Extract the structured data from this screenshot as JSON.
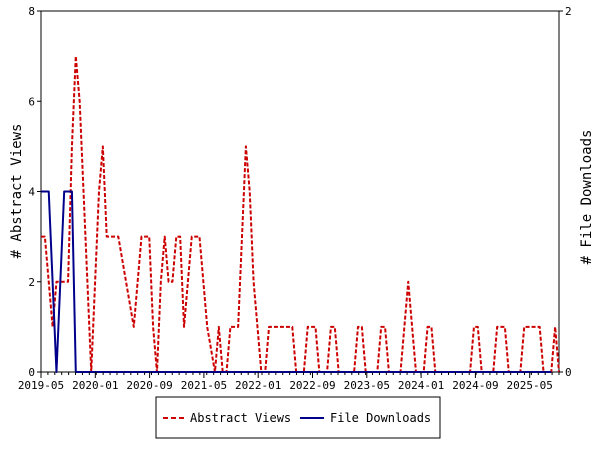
{
  "chart_data": {
    "type": "line",
    "title": "",
    "ylabel": "# Abstract Views",
    "y2label": "# File Downloads",
    "ylim": [
      0,
      8
    ],
    "y2lim": [
      0,
      2
    ],
    "y_ticks": [
      0,
      2,
      4,
      6,
      8
    ],
    "y2_ticks": [
      0,
      2
    ],
    "x_tick_labels": [
      "2019-05",
      "2020-01",
      "2020-09",
      "2021-05",
      "2022-01",
      "2022-09",
      "2023-05",
      "2024-01",
      "2024-09",
      "2025-05"
    ],
    "grid": false,
    "legend_position": "bottom",
    "series": [
      {
        "name": "Abstract Views",
        "axis": "left",
        "color": "#cc0000",
        "style": "dashed",
        "values": [
          3,
          3,
          2,
          1,
          2,
          2,
          2,
          2,
          5,
          7,
          6,
          4,
          2,
          0,
          2,
          4,
          5,
          3,
          3,
          3,
          3,
          2.5,
          2,
          1.5,
          1,
          2,
          3,
          3,
          3,
          1,
          0,
          2,
          3,
          2,
          2,
          3,
          3,
          1,
          2,
          3,
          3,
          3,
          2,
          1,
          0.5,
          0,
          1,
          0,
          0,
          1,
          1,
          1,
          3,
          5,
          4,
          2,
          1,
          0,
          0,
          1,
          1,
          1,
          1,
          1,
          1,
          1,
          0,
          0,
          0,
          1,
          1,
          1,
          0,
          0,
          0,
          1,
          1,
          0,
          0,
          0,
          0,
          0,
          1,
          1,
          0,
          0,
          0,
          0,
          1,
          1,
          0,
          0,
          0,
          0,
          1,
          2,
          1,
          0,
          0,
          0,
          1,
          1,
          0,
          0,
          0,
          0,
          0,
          0,
          0,
          0,
          0,
          0,
          1,
          1,
          0,
          0,
          0,
          0,
          1,
          1,
          1,
          0,
          0,
          0,
          0,
          1,
          1,
          1,
          1,
          1,
          0,
          0,
          0,
          1,
          0
        ]
      },
      {
        "name": "File Downloads",
        "axis": "right",
        "color": "#00008b",
        "style": "solid",
        "values": [
          1,
          1,
          1,
          0.5,
          0,
          0.5,
          1,
          1,
          1,
          0,
          0,
          0,
          0,
          0,
          0,
          0,
          0,
          0,
          0,
          0,
          0,
          0,
          0,
          0,
          0,
          0,
          0,
          0,
          0,
          0,
          0,
          0,
          0,
          0,
          0,
          0,
          0,
          0,
          0,
          0,
          0,
          0,
          0,
          0,
          0,
          0,
          0,
          0,
          0,
          0,
          0,
          0,
          0,
          0,
          0,
          0,
          0,
          0,
          0,
          0,
          0,
          0,
          0,
          0,
          0,
          0,
          0,
          0,
          0,
          0,
          0,
          0,
          0,
          0,
          0,
          0,
          0,
          0,
          0,
          0,
          0,
          0,
          0,
          0,
          0,
          0,
          0,
          0,
          0,
          0,
          0,
          0,
          0,
          0,
          0,
          0,
          0,
          0,
          0,
          0,
          0,
          0,
          0,
          0,
          0,
          0,
          0,
          0,
          0,
          0,
          0,
          0,
          0,
          0,
          0,
          0,
          0,
          0,
          0,
          0,
          0,
          0,
          0,
          0,
          0,
          0,
          0,
          0,
          0,
          0,
          0,
          0,
          0
        ]
      }
    ]
  }
}
